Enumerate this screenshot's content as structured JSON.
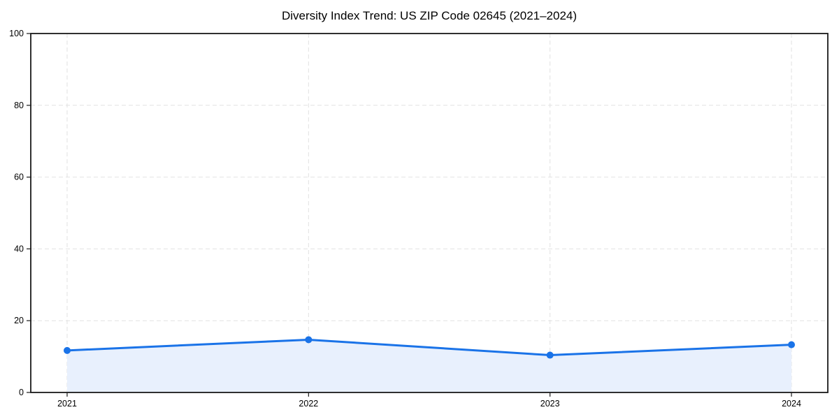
{
  "chart_data": {
    "type": "line",
    "title": "Diversity Index Trend: US ZIP Code 02645 (2021–2024)",
    "categories": [
      "2021",
      "2022",
      "2023",
      "2024"
    ],
    "series": [
      {
        "name": "Diversity Index",
        "values": [
          11.7,
          14.7,
          10.4,
          13.3
        ]
      }
    ],
    "xlabel": "",
    "ylabel": "",
    "ylim": [
      0,
      100
    ],
    "yticks": [
      0,
      20,
      40,
      60,
      80,
      100
    ],
    "grid": true,
    "grid_style": "dashed",
    "legend": "none",
    "marker": "circle",
    "area_fill": true,
    "colors": {
      "line": "#1a73e8",
      "fill": "#e8f0fd",
      "grid": "#e2e2e2",
      "axis": "#1a1a1a",
      "text": "#000000"
    }
  }
}
